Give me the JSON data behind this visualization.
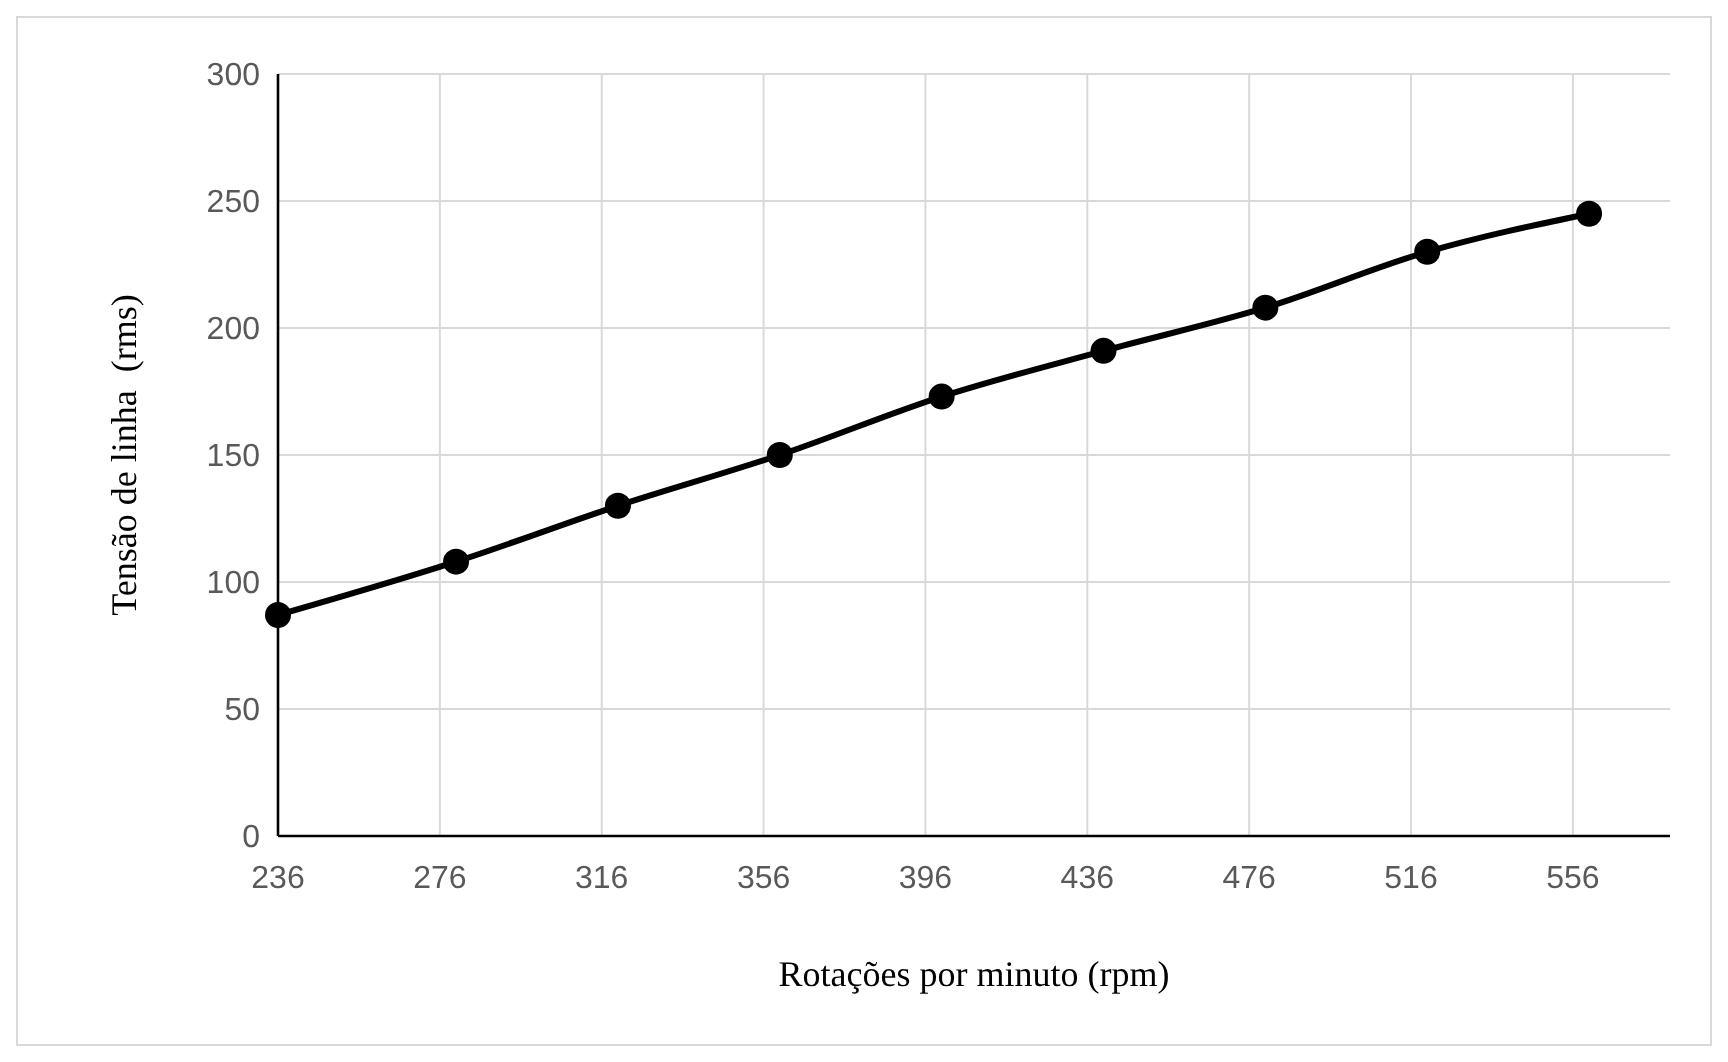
{
  "chart_data": {
    "type": "line",
    "xlabel": "Rotações por minuto (rpm)",
    "ylabel": "Tensão de linha  (rms)",
    "x": [
      236,
      280,
      320,
      360,
      400,
      440,
      480,
      520,
      560
    ],
    "series": [
      {
        "color": "#000000",
        "values": [
          87,
          108,
          130,
          150,
          173,
          191,
          208,
          230,
          245
        ]
      }
    ],
    "xlim": [
      236,
      580
    ],
    "xticks": [
      236,
      276,
      316,
      356,
      396,
      436,
      476,
      516,
      556
    ],
    "ylim": [
      0,
      300
    ],
    "yticks": [
      0,
      50,
      100,
      150,
      200,
      250,
      300
    ],
    "grid": true,
    "marker": "circle",
    "line_style": "solid"
  }
}
